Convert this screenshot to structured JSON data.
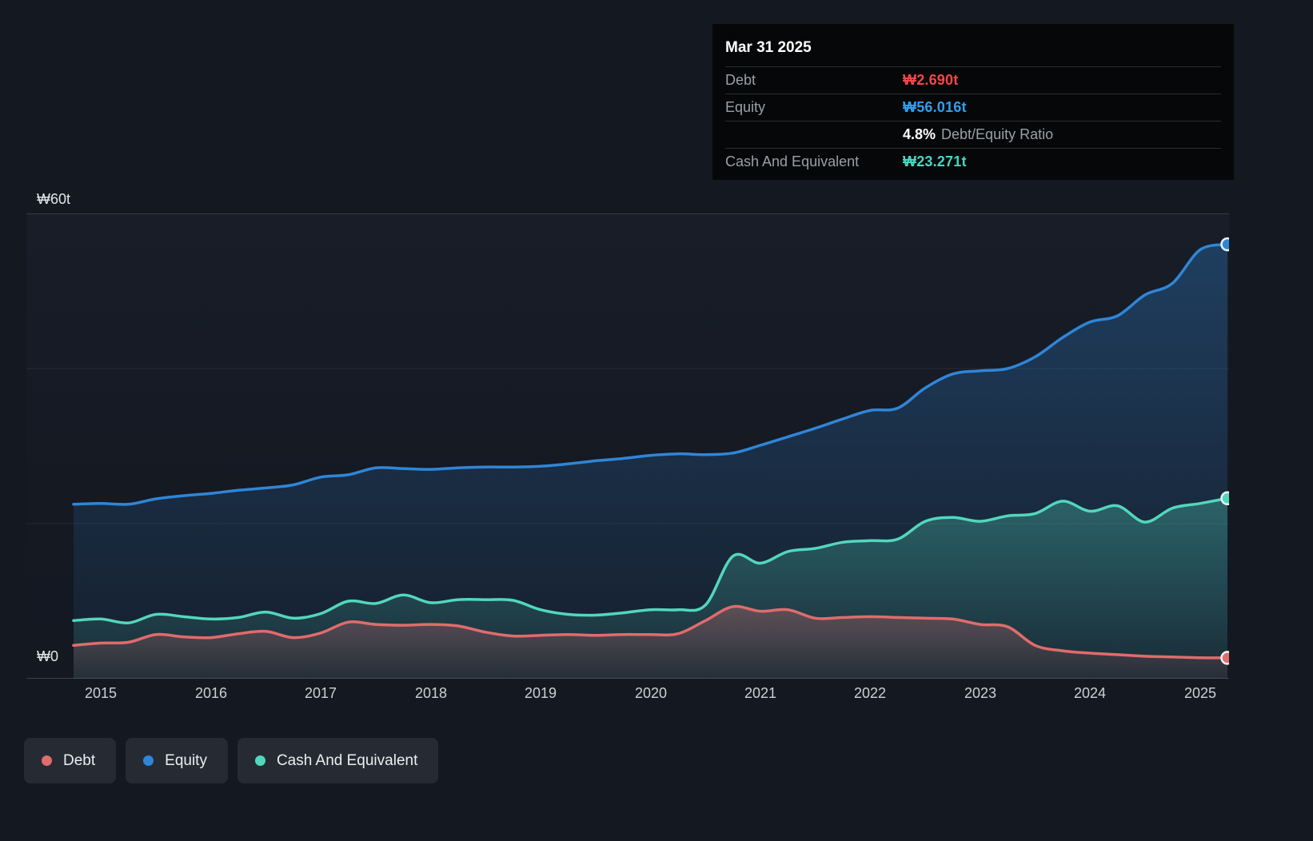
{
  "page": {
    "background": "#141821"
  },
  "tooltip": {
    "date": "Mar 31 2025",
    "debt_label": "Debt",
    "debt_value": "₩2.690t",
    "equity_label": "Equity",
    "equity_value": "₩56.016t",
    "ratio_value": "4.8%",
    "ratio_label": "Debt/Equity Ratio",
    "cash_label": "Cash And Equivalent",
    "cash_value": "₩23.271t"
  },
  "colors": {
    "debt": "#e06c6c",
    "equity": "#2f86d7",
    "cash": "#52d7bd",
    "debt_value_text": "#f44747",
    "equity_value_text": "#2da1f1",
    "cash_value_text": "#45d7c1"
  },
  "axis": {
    "y_top_label": "₩60t",
    "y_zero_label": "₩0",
    "x_ticks": [
      "2015",
      "2016",
      "2017",
      "2018",
      "2019",
      "2020",
      "2021",
      "2022",
      "2023",
      "2024",
      "2025"
    ]
  },
  "legend": [
    {
      "label": "Debt",
      "color": "#e06c6c"
    },
    {
      "label": "Equity",
      "color": "#2f86d7"
    },
    {
      "label": "Cash And Equivalent",
      "color": "#52d7bd"
    }
  ],
  "chart_data": {
    "type": "area",
    "unit": "₩ trillion",
    "ylim": [
      0,
      60
    ],
    "x_range": [
      2014.75,
      2025.25
    ],
    "gridlines": [
      0,
      20,
      40,
      60
    ],
    "legend_position": "bottom-left",
    "x": [
      2014.75,
      2015.0,
      2015.25,
      2015.5,
      2015.75,
      2016.0,
      2016.25,
      2016.5,
      2016.75,
      2017.0,
      2017.25,
      2017.5,
      2017.75,
      2018.0,
      2018.25,
      2018.5,
      2018.75,
      2019.0,
      2019.25,
      2019.5,
      2019.75,
      2020.0,
      2020.25,
      2020.5,
      2020.75,
      2021.0,
      2021.25,
      2021.5,
      2021.75,
      2022.0,
      2022.25,
      2022.5,
      2022.75,
      2023.0,
      2023.25,
      2023.5,
      2023.75,
      2024.0,
      2024.25,
      2024.5,
      2024.75,
      2025.0,
      2025.25
    ],
    "series": [
      {
        "name": "Debt",
        "color": "#e06c6c",
        "values": [
          4.3,
          4.6,
          4.7,
          5.7,
          5.4,
          5.3,
          5.8,
          6.1,
          5.3,
          5.9,
          7.3,
          7.0,
          6.9,
          7.0,
          6.8,
          6.0,
          5.5,
          5.6,
          5.7,
          5.6,
          5.7,
          5.7,
          5.8,
          7.5,
          9.3,
          8.7,
          8.9,
          7.8,
          7.9,
          8.0,
          7.9,
          7.8,
          7.7,
          7.0,
          6.7,
          4.3,
          3.6,
          3.3,
          3.1,
          2.9,
          2.8,
          2.7,
          2.69
        ]
      },
      {
        "name": "Equity",
        "color": "#2f86d7",
        "values": [
          22.5,
          22.6,
          22.5,
          23.2,
          23.6,
          23.9,
          24.3,
          24.6,
          25.0,
          26.0,
          26.3,
          27.2,
          27.1,
          27.0,
          27.2,
          27.3,
          27.3,
          27.4,
          27.7,
          28.1,
          28.4,
          28.8,
          29.0,
          28.9,
          29.1,
          30.1,
          31.2,
          32.3,
          33.5,
          34.6,
          34.9,
          37.5,
          39.3,
          39.7,
          40.0,
          41.5,
          44.0,
          46.0,
          46.8,
          49.5,
          51.0,
          55.3,
          56.016
        ]
      },
      {
        "name": "Cash And Equivalent",
        "color": "#52d7bd",
        "values": [
          7.5,
          7.7,
          7.2,
          8.3,
          8.0,
          7.7,
          7.9,
          8.6,
          7.8,
          8.4,
          10.0,
          9.7,
          10.8,
          9.8,
          10.2,
          10.2,
          10.1,
          8.9,
          8.3,
          8.2,
          8.5,
          8.9,
          8.9,
          9.5,
          15.8,
          14.9,
          16.4,
          16.8,
          17.6,
          17.8,
          18.0,
          20.3,
          20.8,
          20.3,
          21.0,
          21.3,
          22.9,
          21.6,
          22.3,
          20.2,
          22.0,
          22.6,
          23.271
        ]
      }
    ]
  }
}
